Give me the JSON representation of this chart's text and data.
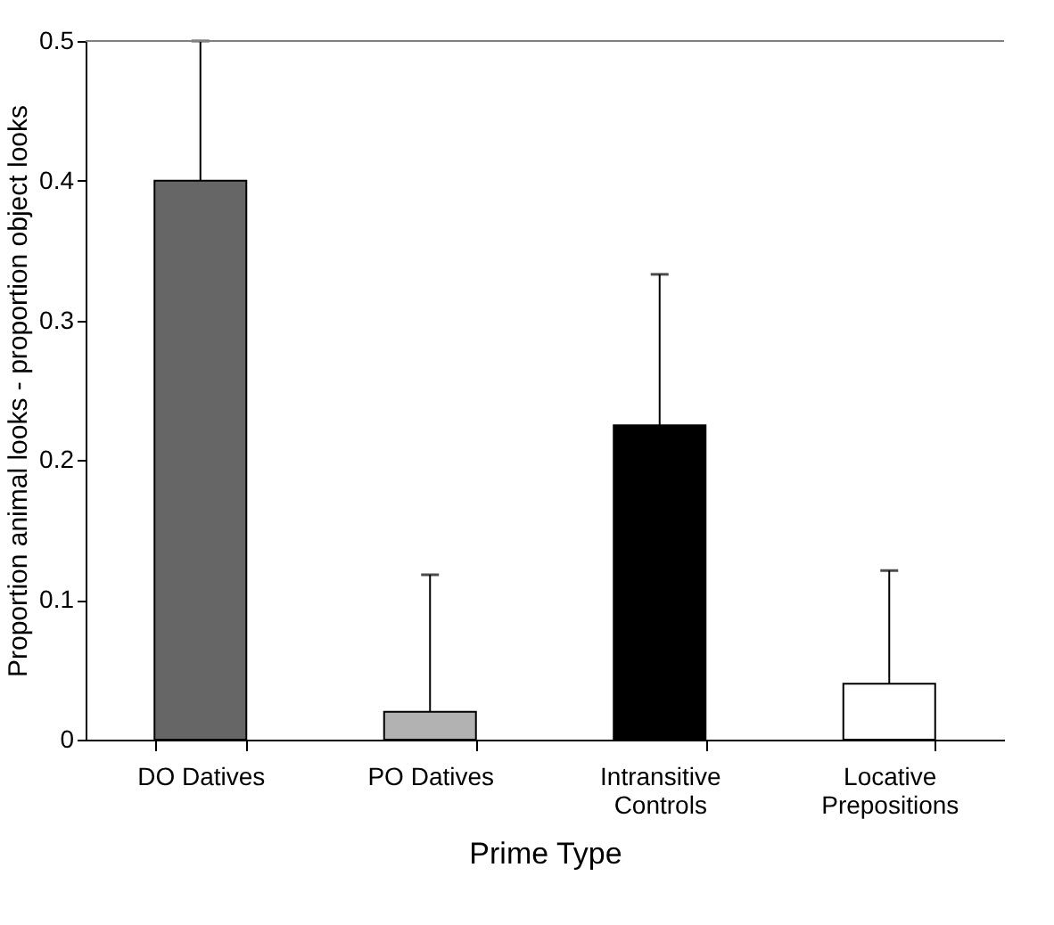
{
  "chart_data": {
    "type": "bar",
    "categories": [
      "DO Datives",
      "PO Datives",
      "Intransitive\nControls",
      "Locative\nPrepositions"
    ],
    "values": [
      0.4,
      0.02,
      0.225,
      0.04
    ],
    "colors": [
      "#666666",
      "#b2b2b2",
      "#000000",
      "#ffffff"
    ],
    "errors": [
      [
        0.4,
        0.5
      ],
      [
        0.02,
        0.118
      ],
      [
        0.225,
        0.333
      ],
      [
        0.04,
        0.121
      ]
    ],
    "xlabel": "Prime Type",
    "ylabel": "Proportion animal looks - proportion object looks",
    "ylim": [
      0,
      0.5
    ],
    "yticks": [
      0,
      0.1,
      0.2,
      0.3,
      0.4,
      0.5
    ],
    "grid": false,
    "legend": false
  }
}
